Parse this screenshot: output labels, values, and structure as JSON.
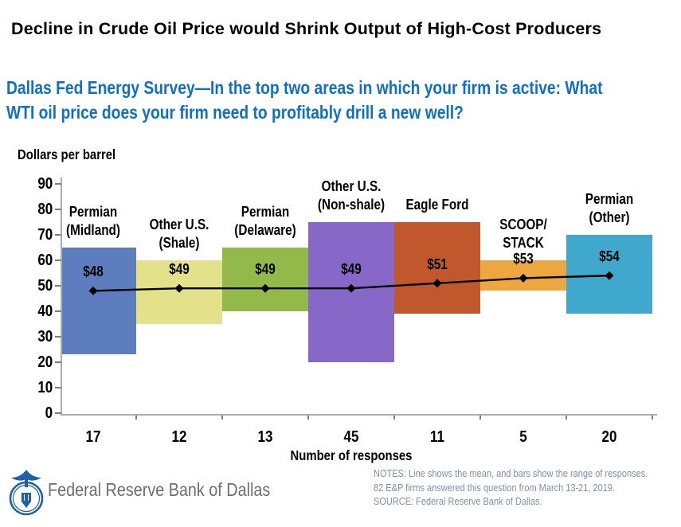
{
  "title": "Decline in Crude Oil Price would Shrink Output of High-Cost Producers",
  "subtitle": {
    "line1": "Dallas Fed Energy Survey—In the top two areas in which your firm is active: What",
    "line2": "WTI oil price does your firm need to profitably drill a new well?"
  },
  "chart_data": {
    "type": "bar",
    "subtype": "floating range bars with mean line",
    "title": "Dallas Fed Energy Survey — WTI price needed to profitably drill a new well",
    "ylabel": "Dollars per barrel",
    "xlabel": "Number of responses",
    "ylim": [
      0,
      90
    ],
    "ytick_step": 10,
    "grid": "off",
    "legend": "none",
    "line_color": "#000000",
    "categories": [
      {
        "name": "Permian (Midland)",
        "name_lines": [
          "Permian",
          "(Midland)"
        ],
        "responses": "17",
        "range_low": 23,
        "range_high": 65,
        "mean": 48,
        "mean_label": "$48",
        "color": "#5e7dbe"
      },
      {
        "name": "Other U.S. (Shale)",
        "name_lines": [
          "Other U.S.",
          "(Shale)"
        ],
        "responses": "12",
        "range_low": 35,
        "range_high": 60,
        "mean": 49,
        "mean_label": "$49",
        "color": "#e3e28a"
      },
      {
        "name": "Permian (Delaware)",
        "name_lines": [
          "Permian",
          "(Delaware)"
        ],
        "responses": "13",
        "range_low": 40,
        "range_high": 65,
        "mean": 49,
        "mean_label": "$49",
        "color": "#94b94b"
      },
      {
        "name": "Other U.S. (Non-shale)",
        "name_lines": [
          "Other U.S.",
          "(Non-shale)"
        ],
        "responses": "45",
        "range_low": 20,
        "range_high": 75,
        "mean": 49,
        "mean_label": "$49",
        "color": "#8767c8"
      },
      {
        "name": "Eagle Ford",
        "name_lines": [
          "Eagle Ford"
        ],
        "responses": "11",
        "range_low": 39,
        "range_high": 75,
        "mean": 51,
        "mean_label": "$51",
        "color": "#c1582d"
      },
      {
        "name": "SCOOP/STACK",
        "name_lines": [
          "SCOOP/",
          "STACK"
        ],
        "responses": "5",
        "range_low": 48,
        "range_high": 60,
        "mean": 53,
        "mean_label": "$53",
        "color": "#eea73e"
      },
      {
        "name": "Permian (Other)",
        "name_lines": [
          "Permian",
          "(Other)"
        ],
        "responses": "20",
        "range_low": 39,
        "range_high": 70,
        "mean": 54,
        "mean_label": "$54",
        "color": "#3fa8cc"
      }
    ]
  },
  "footer": {
    "bank_name": "Federal Reserve Bank of Dallas",
    "logo": "federal-reserve-bank-of-dallas-seal",
    "notes": [
      "NOTES: Line shows the mean, and bars show the range of responses.",
      "82 E&P firms answered this question from March 13-21, 2019.",
      "SOURCE: Federal Reserve Bank of Dallas."
    ]
  },
  "colors": {
    "title_text": "#000000",
    "subtitle_text": "#0e6fc8",
    "notes_text": "#7e90aa",
    "bank_name_text": "#6d6e70",
    "logo_blue": "#2060a8",
    "axis_line": "#a9afa1",
    "tick": "#7e7e7e"
  }
}
